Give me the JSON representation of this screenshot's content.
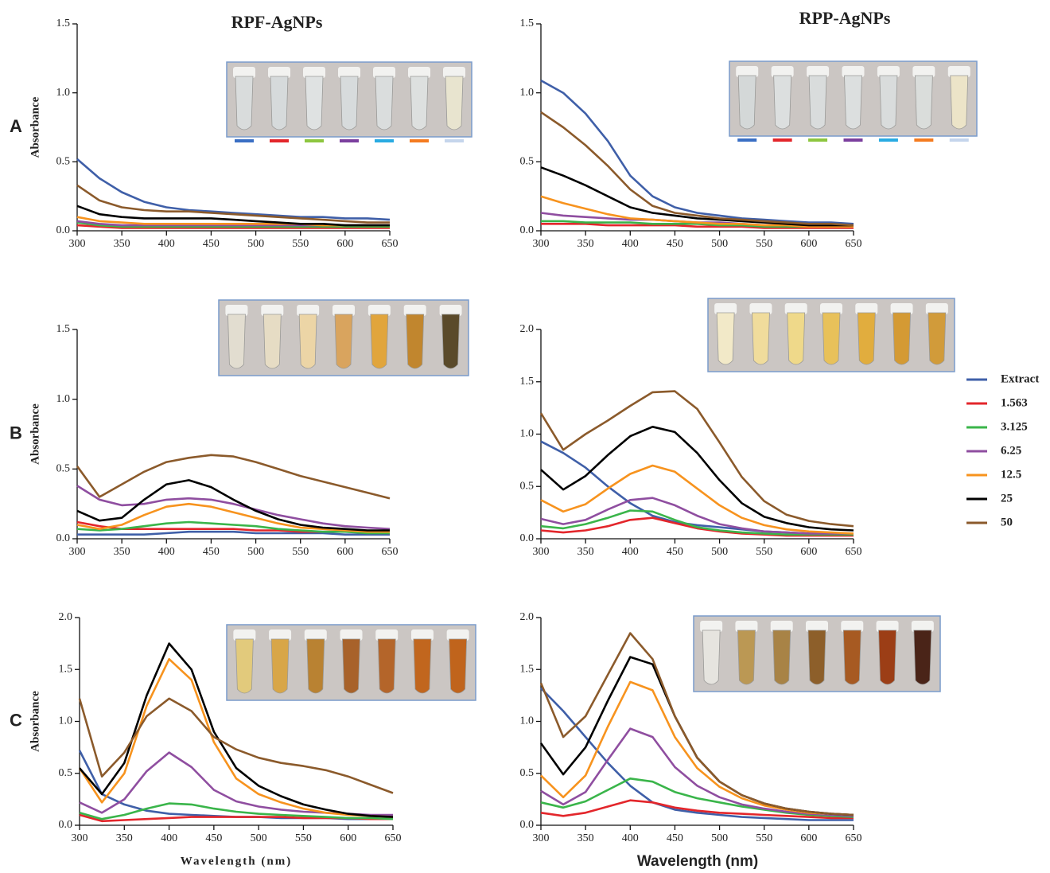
{
  "chart_data": [
    {
      "type": "line",
      "title": "RPF-AgNPs",
      "panel_label": "A",
      "ylabel": "Absorbance",
      "x": [
        300,
        325,
        350,
        375,
        400,
        425,
        450,
        475,
        500,
        525,
        550,
        575,
        600,
        625,
        650
      ],
      "xlim": [
        300,
        650
      ],
      "xticks": [
        300,
        350,
        400,
        450,
        500,
        550,
        600,
        650
      ],
      "ylim": [
        0,
        1.5
      ],
      "yticks": [
        {
          "value": 0,
          "label": "0.0"
        },
        0.5,
        {
          "value": 1,
          "label": "1.0"
        },
        1.5
      ],
      "series": [
        {
          "color": "#3f5fa8",
          "values": [
            0.52,
            0.38,
            0.28,
            0.21,
            0.17,
            0.15,
            0.14,
            0.13,
            0.12,
            0.11,
            0.1,
            0.1,
            0.09,
            0.09,
            0.08
          ]
        },
        {
          "color": "#e3262b",
          "values": [
            0.04,
            0.03,
            0.02,
            0.02,
            0.02,
            0.02,
            0.02,
            0.02,
            0.02,
            0.02,
            0.02,
            0.02,
            0.02,
            0.02,
            0.02
          ]
        },
        {
          "color": "#3ab54a",
          "values": [
            0.06,
            0.04,
            0.03,
            0.03,
            0.03,
            0.03,
            0.03,
            0.03,
            0.03,
            0.03,
            0.03,
            0.03,
            0.03,
            0.03,
            0.03
          ]
        },
        {
          "color": "#8f4ea0",
          "values": [
            0.07,
            0.05,
            0.04,
            0.04,
            0.04,
            0.04,
            0.04,
            0.04,
            0.04,
            0.04,
            0.04,
            0.04,
            0.04,
            0.04,
            0.04
          ]
        },
        {
          "color": "#f7931e",
          "values": [
            0.1,
            0.07,
            0.06,
            0.05,
            0.05,
            0.05,
            0.05,
            0.05,
            0.05,
            0.05,
            0.05,
            0.04,
            0.04,
            0.04,
            0.04
          ]
        },
        {
          "color": "#000000",
          "values": [
            0.18,
            0.12,
            0.1,
            0.09,
            0.09,
            0.09,
            0.09,
            0.08,
            0.07,
            0.06,
            0.05,
            0.05,
            0.04,
            0.04,
            0.04
          ]
        },
        {
          "color": "#8b5a2b",
          "values": [
            0.33,
            0.22,
            0.17,
            0.15,
            0.14,
            0.14,
            0.13,
            0.12,
            0.11,
            0.1,
            0.09,
            0.08,
            0.07,
            0.06,
            0.06
          ]
        }
      ]
    },
    {
      "type": "line",
      "title": "RPP-AgNPs",
      "x": [
        300,
        325,
        350,
        375,
        400,
        425,
        450,
        475,
        500,
        525,
        550,
        575,
        600,
        625,
        650
      ],
      "xlim": [
        300,
        650
      ],
      "xticks": [
        300,
        350,
        400,
        450,
        500,
        550,
        600,
        650
      ],
      "ylim": [
        0,
        1.5
      ],
      "yticks": [
        {
          "value": 0,
          "label": "0.0"
        },
        0.5,
        {
          "value": 1,
          "label": "1.0"
        },
        1.5
      ],
      "series": [
        {
          "color": "#3f5fa8",
          "values": [
            1.09,
            1.0,
            0.85,
            0.65,
            0.4,
            0.25,
            0.17,
            0.13,
            0.11,
            0.09,
            0.08,
            0.07,
            0.06,
            0.06,
            0.05
          ]
        },
        {
          "color": "#e3262b",
          "values": [
            0.05,
            0.05,
            0.05,
            0.04,
            0.04,
            0.04,
            0.04,
            0.03,
            0.03,
            0.03,
            0.02,
            0.02,
            0.02,
            0.02,
            0.02
          ]
        },
        {
          "color": "#3ab54a",
          "values": [
            0.07,
            0.07,
            0.06,
            0.06,
            0.06,
            0.05,
            0.05,
            0.05,
            0.04,
            0.04,
            0.03,
            0.03,
            0.03,
            0.03,
            0.03
          ]
        },
        {
          "color": "#8f4ea0",
          "values": [
            0.13,
            0.11,
            0.1,
            0.09,
            0.08,
            0.08,
            0.07,
            0.06,
            0.06,
            0.05,
            0.04,
            0.04,
            0.04,
            0.03,
            0.03
          ]
        },
        {
          "color": "#f7931e",
          "values": [
            0.25,
            0.2,
            0.16,
            0.12,
            0.09,
            0.08,
            0.07,
            0.06,
            0.05,
            0.05,
            0.04,
            0.04,
            0.03,
            0.03,
            0.03
          ]
        },
        {
          "color": "#000000",
          "values": [
            0.46,
            0.4,
            0.33,
            0.25,
            0.17,
            0.13,
            0.11,
            0.09,
            0.08,
            0.07,
            0.06,
            0.05,
            0.04,
            0.04,
            0.04
          ]
        },
        {
          "color": "#8b5a2b",
          "values": [
            0.86,
            0.75,
            0.62,
            0.47,
            0.3,
            0.18,
            0.13,
            0.11,
            0.09,
            0.08,
            0.07,
            0.06,
            0.05,
            0.05,
            0.04
          ]
        }
      ]
    },
    {
      "type": "line",
      "panel_label": "B",
      "ylabel": "Absorbance",
      "x": [
        300,
        325,
        350,
        375,
        400,
        425,
        450,
        475,
        500,
        525,
        550,
        575,
        600,
        625,
        650
      ],
      "xlim": [
        300,
        650
      ],
      "xticks": [
        300,
        350,
        400,
        450,
        500,
        550,
        600,
        650
      ],
      "ylim": [
        0,
        1.5
      ],
      "yticks": [
        {
          "value": 0,
          "label": "0.0"
        },
        0.5,
        {
          "value": 1,
          "label": "1.0"
        },
        1.5
      ],
      "series": [
        {
          "color": "#3f5fa8",
          "values": [
            0.03,
            0.03,
            0.03,
            0.03,
            0.04,
            0.05,
            0.05,
            0.05,
            0.04,
            0.04,
            0.04,
            0.04,
            0.03,
            0.03,
            0.03
          ]
        },
        {
          "color": "#e3262b",
          "values": [
            0.12,
            0.09,
            0.07,
            0.07,
            0.07,
            0.07,
            0.07,
            0.07,
            0.06,
            0.06,
            0.05,
            0.05,
            0.05,
            0.05,
            0.04
          ]
        },
        {
          "color": "#3ab54a",
          "values": [
            0.07,
            0.06,
            0.07,
            0.09,
            0.11,
            0.12,
            0.11,
            0.1,
            0.09,
            0.07,
            0.06,
            0.05,
            0.05,
            0.04,
            0.04
          ]
        },
        {
          "color": "#8f4ea0",
          "values": [
            0.38,
            0.28,
            0.24,
            0.25,
            0.28,
            0.29,
            0.28,
            0.25,
            0.21,
            0.17,
            0.14,
            0.11,
            0.09,
            0.08,
            0.07
          ]
        },
        {
          "color": "#f7931e",
          "values": [
            0.1,
            0.07,
            0.1,
            0.17,
            0.23,
            0.25,
            0.23,
            0.19,
            0.15,
            0.11,
            0.08,
            0.07,
            0.06,
            0.05,
            0.05
          ]
        },
        {
          "color": "#000000",
          "values": [
            0.2,
            0.13,
            0.15,
            0.28,
            0.39,
            0.42,
            0.37,
            0.28,
            0.2,
            0.14,
            0.1,
            0.08,
            0.07,
            0.06,
            0.06
          ]
        },
        {
          "color": "#8b5a2b",
          "values": [
            0.52,
            0.3,
            0.39,
            0.48,
            0.55,
            0.58,
            0.6,
            0.59,
            0.55,
            0.5,
            0.45,
            0.41,
            0.37,
            0.33,
            0.29
          ]
        }
      ]
    },
    {
      "type": "line",
      "legend": "right",
      "x": [
        300,
        325,
        350,
        375,
        400,
        425,
        450,
        475,
        500,
        525,
        550,
        575,
        600,
        625,
        650
      ],
      "xlim": [
        300,
        650
      ],
      "xticks": [
        300,
        350,
        400,
        450,
        500,
        550,
        600,
        650
      ],
      "ylim": [
        0,
        2
      ],
      "yticks": [
        {
          "value": 0,
          "label": "0.0"
        },
        0.5,
        {
          "value": 1,
          "label": "1.0"
        },
        1.5,
        {
          "value": 2,
          "label": "2.0"
        }
      ],
      "series": [
        {
          "name": "Extract",
          "color": "#3f5fa8",
          "values": [
            0.93,
            0.82,
            0.68,
            0.5,
            0.34,
            0.22,
            0.16,
            0.13,
            0.11,
            0.09,
            0.07,
            0.06,
            0.05,
            0.05,
            0.04
          ]
        },
        {
          "name": "1.563",
          "color": "#e3262b",
          "values": [
            0.08,
            0.06,
            0.08,
            0.12,
            0.18,
            0.2,
            0.15,
            0.1,
            0.07,
            0.05,
            0.04,
            0.03,
            0.03,
            0.03,
            0.03
          ]
        },
        {
          "name": "3.125",
          "color": "#3ab54a",
          "values": [
            0.12,
            0.1,
            0.14,
            0.2,
            0.27,
            0.26,
            0.18,
            0.11,
            0.08,
            0.06,
            0.05,
            0.04,
            0.04,
            0.04,
            0.04
          ]
        },
        {
          "name": "6.25",
          "color": "#8f4ea0",
          "values": [
            0.19,
            0.14,
            0.18,
            0.28,
            0.37,
            0.39,
            0.32,
            0.22,
            0.14,
            0.1,
            0.07,
            0.06,
            0.05,
            0.05,
            0.05
          ]
        },
        {
          "name": "12.5",
          "color": "#f7931e",
          "values": [
            0.37,
            0.26,
            0.33,
            0.48,
            0.62,
            0.7,
            0.64,
            0.48,
            0.32,
            0.2,
            0.13,
            0.09,
            0.07,
            0.06,
            0.05
          ]
        },
        {
          "name": "25",
          "color": "#000000",
          "values": [
            0.66,
            0.47,
            0.6,
            0.8,
            0.98,
            1.07,
            1.02,
            0.82,
            0.56,
            0.34,
            0.21,
            0.15,
            0.11,
            0.09,
            0.08
          ]
        },
        {
          "name": "50",
          "color": "#8b5a2b",
          "values": [
            1.2,
            0.85,
            1.0,
            1.13,
            1.27,
            1.4,
            1.41,
            1.24,
            0.92,
            0.59,
            0.36,
            0.23,
            0.17,
            0.14,
            0.12
          ]
        }
      ]
    },
    {
      "type": "line",
      "panel_label": "C",
      "ylabel": "Absorbance",
      "xlabel": "Wavelength (nm)",
      "x": [
        300,
        325,
        350,
        375,
        400,
        425,
        450,
        475,
        500,
        525,
        550,
        575,
        600,
        625,
        650
      ],
      "xlim": [
        300,
        650
      ],
      "xticks": [
        300,
        350,
        400,
        450,
        500,
        550,
        600,
        650
      ],
      "ylim": [
        0,
        2
      ],
      "yticks": [
        {
          "value": 0,
          "label": "0.0"
        },
        0.5,
        {
          "value": 1,
          "label": "1.0"
        },
        1.5,
        {
          "value": 2,
          "label": "2.0"
        }
      ],
      "series": [
        {
          "color": "#3f5fa8",
          "values": [
            0.72,
            0.3,
            0.2,
            0.14,
            0.11,
            0.1,
            0.09,
            0.08,
            0.08,
            0.07,
            0.07,
            0.07,
            0.06,
            0.06,
            0.06
          ]
        },
        {
          "color": "#e3262b",
          "values": [
            0.1,
            0.04,
            0.05,
            0.06,
            0.07,
            0.08,
            0.08,
            0.08,
            0.08,
            0.08,
            0.07,
            0.07,
            0.07,
            0.06,
            0.06
          ]
        },
        {
          "color": "#3ab54a",
          "values": [
            0.12,
            0.06,
            0.1,
            0.16,
            0.21,
            0.2,
            0.16,
            0.13,
            0.11,
            0.1,
            0.09,
            0.08,
            0.07,
            0.07,
            0.06
          ]
        },
        {
          "color": "#8f4ea0",
          "values": [
            0.22,
            0.12,
            0.25,
            0.52,
            0.7,
            0.56,
            0.34,
            0.23,
            0.18,
            0.15,
            0.13,
            0.12,
            0.11,
            0.1,
            0.1
          ]
        },
        {
          "color": "#f7931e",
          "values": [
            0.55,
            0.22,
            0.5,
            1.15,
            1.6,
            1.4,
            0.8,
            0.45,
            0.3,
            0.22,
            0.16,
            0.12,
            0.1,
            0.09,
            0.08
          ]
        },
        {
          "color": "#000000",
          "values": [
            0.55,
            0.3,
            0.6,
            1.25,
            1.75,
            1.5,
            0.9,
            0.55,
            0.38,
            0.28,
            0.2,
            0.15,
            0.11,
            0.09,
            0.08
          ]
        },
        {
          "color": "#8b5a2b",
          "values": [
            1.22,
            0.47,
            0.7,
            1.05,
            1.22,
            1.1,
            0.85,
            0.73,
            0.65,
            0.6,
            0.57,
            0.53,
            0.47,
            0.39,
            0.31
          ]
        }
      ]
    },
    {
      "type": "line",
      "xlabel": "Wavelength (nm)",
      "x": [
        300,
        325,
        350,
        375,
        400,
        425,
        450,
        475,
        500,
        525,
        550,
        575,
        600,
        625,
        650
      ],
      "xlim": [
        300,
        650
      ],
      "xticks": [
        300,
        350,
        400,
        450,
        500,
        550,
        600,
        650
      ],
      "ylim": [
        0,
        2
      ],
      "yticks": [
        {
          "value": 0,
          "label": "0.0"
        },
        0.5,
        {
          "value": 1,
          "label": "1.0"
        },
        1.5,
        {
          "value": 2,
          "label": "2.0"
        }
      ],
      "series": [
        {
          "color": "#3f5fa8",
          "values": [
            1.32,
            1.1,
            0.85,
            0.6,
            0.38,
            0.22,
            0.15,
            0.12,
            0.1,
            0.08,
            0.07,
            0.06,
            0.05,
            0.05,
            0.05
          ]
        },
        {
          "color": "#e3262b",
          "values": [
            0.12,
            0.09,
            0.12,
            0.18,
            0.24,
            0.22,
            0.17,
            0.14,
            0.12,
            0.11,
            0.1,
            0.09,
            0.08,
            0.07,
            0.07
          ]
        },
        {
          "color": "#3ab54a",
          "values": [
            0.22,
            0.17,
            0.23,
            0.34,
            0.45,
            0.42,
            0.32,
            0.26,
            0.22,
            0.18,
            0.15,
            0.12,
            0.1,
            0.09,
            0.08
          ]
        },
        {
          "color": "#8f4ea0",
          "values": [
            0.33,
            0.2,
            0.32,
            0.63,
            0.93,
            0.85,
            0.56,
            0.38,
            0.27,
            0.2,
            0.16,
            0.13,
            0.11,
            0.1,
            0.09
          ]
        },
        {
          "color": "#f7931e",
          "values": [
            0.48,
            0.27,
            0.48,
            0.95,
            1.38,
            1.3,
            0.85,
            0.55,
            0.37,
            0.26,
            0.19,
            0.15,
            0.12,
            0.11,
            0.1
          ]
        },
        {
          "color": "#000000",
          "values": [
            0.79,
            0.49,
            0.75,
            1.2,
            1.62,
            1.55,
            1.05,
            0.65,
            0.42,
            0.29,
            0.21,
            0.16,
            0.13,
            0.11,
            0.1
          ]
        },
        {
          "color": "#8b5a2b",
          "values": [
            1.37,
            0.85,
            1.05,
            1.45,
            1.85,
            1.6,
            1.05,
            0.65,
            0.42,
            0.29,
            0.21,
            0.16,
            0.13,
            0.11,
            0.1
          ]
        }
      ]
    }
  ]
}
